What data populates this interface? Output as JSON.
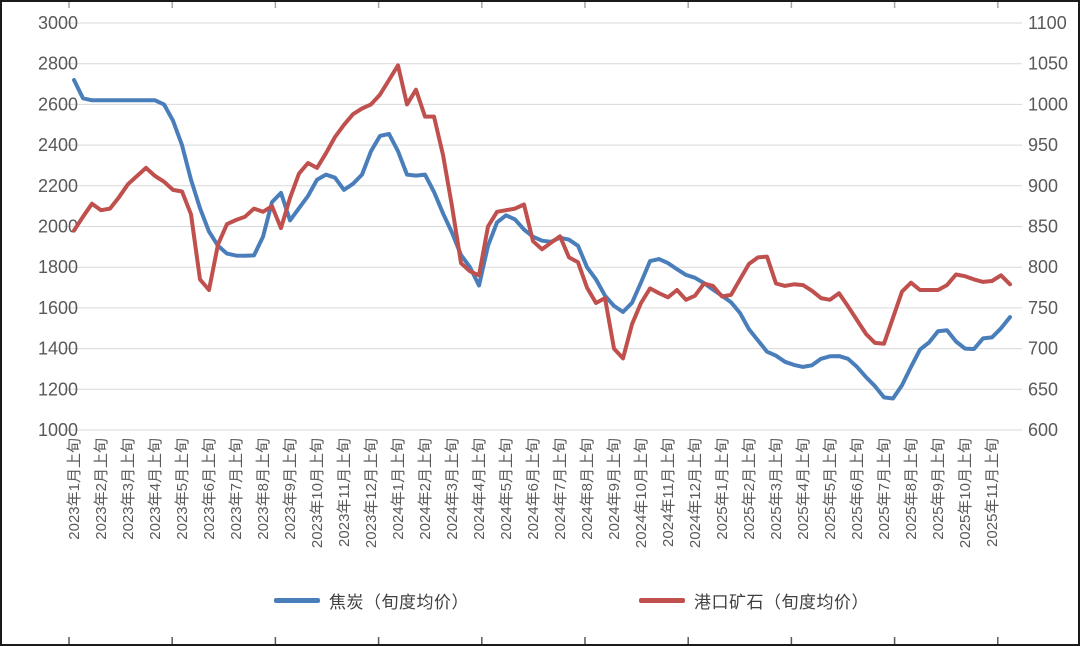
{
  "page": {
    "background": "#FFFFFF",
    "frame_color": "#1A1A1A",
    "gridline_color": "#D9D9D9",
    "axis_text_color": "#595959",
    "legend_text_color": "#404040"
  },
  "legend": {
    "coke_label": "焦炭（旬度均价）",
    "ore_label": "港口矿石（旬度均价）"
  },
  "chart_data": {
    "type": "line",
    "title": "",
    "grid": "horizontal",
    "legend_position": "bottom",
    "x_axis": {
      "note": "ten-day-period (旬) data, 3 points per monthly label",
      "points_per_month": 3,
      "monthly_labels": [
        "2023年1月上旬",
        "2023年2月上旬",
        "2023年3月上旬",
        "2023年4月上旬",
        "2023年5月上旬",
        "2023年6月上旬",
        "2023年7月上旬",
        "2023年8月上旬",
        "2023年9月上旬",
        "2023年10月上旬",
        "2023年11月上旬",
        "2023年12月上旬",
        "2024年1月上旬",
        "2024年2月上旬",
        "2024年3月上旬",
        "2024年4月上旬",
        "2024年5月上旬",
        "2024年6月上旬",
        "2024年7月上旬",
        "2024年8月上旬",
        "2024年9月上旬",
        "2024年10月上旬",
        "2024年11月上旬",
        "2024年12月上旬",
        "2025年1月上旬",
        "2025年2月上旬",
        "2025年3月上旬",
        "2025年4月上旬",
        "2025年5月上旬",
        "2025年6月上旬",
        "2025年7月上旬",
        "2025年8月上旬",
        "2025年9月上旬",
        "2025年10月上旬",
        "2025年11月上旬"
      ]
    },
    "y_axis_left": {
      "min": 1000,
      "max": 3000,
      "step": 200,
      "ticks": [
        "3000",
        "2800",
        "2600",
        "2400",
        "2200",
        "2000",
        "1800",
        "1600",
        "1400",
        "1200",
        "1000"
      ]
    },
    "y_axis_right": {
      "min": 600,
      "max": 1100,
      "step": 50,
      "ticks": [
        "1100",
        "1050",
        "1000",
        "950",
        "900",
        "850",
        "800",
        "750",
        "700",
        "650",
        "600"
      ]
    },
    "series": [
      {
        "name": "焦炭（旬度均价）",
        "color": "#4A7EBB",
        "axis": "left",
        "values": [
          2720,
          2630,
          2620,
          2620,
          2620,
          2620,
          2620,
          2620,
          2620,
          2620,
          2600,
          2520,
          2400,
          2230,
          2090,
          1975,
          1905,
          1867,
          1857,
          1856,
          1858,
          1950,
          2120,
          2165,
          2030,
          2090,
          2150,
          2230,
          2255,
          2240,
          2180,
          2210,
          2255,
          2370,
          2445,
          2455,
          2370,
          2255,
          2250,
          2255,
          2170,
          2065,
          1970,
          1860,
          1800,
          1710,
          1905,
          2020,
          2055,
          2035,
          1985,
          1950,
          1930,
          1925,
          1945,
          1935,
          1905,
          1800,
          1740,
          1660,
          1610,
          1580,
          1625,
          1725,
          1830,
          1840,
          1820,
          1790,
          1762,
          1748,
          1722,
          1690,
          1660,
          1628,
          1575,
          1495,
          1440,
          1385,
          1365,
          1335,
          1320,
          1310,
          1318,
          1350,
          1362,
          1363,
          1350,
          1310,
          1260,
          1215,
          1160,
          1155,
          1220,
          1310,
          1395,
          1430,
          1485,
          1490,
          1435,
          1400,
          1398,
          1450,
          1455,
          1500,
          1555
        ]
      },
      {
        "name": "港口矿石（旬度均价）",
        "color": "#C0504D",
        "axis": "right",
        "values": [
          845,
          862,
          878,
          870,
          872,
          886,
          902,
          912,
          922,
          912,
          905,
          895,
          893,
          865,
          785,
          772,
          828,
          853,
          858,
          862,
          872,
          868,
          875,
          848,
          885,
          915,
          928,
          922,
          940,
          960,
          975,
          988,
          995,
          1000,
          1012,
          1030,
          1048,
          1000,
          1018,
          985,
          985,
          938,
          875,
          805,
          795,
          790,
          850,
          868,
          870,
          872,
          877,
          832,
          822,
          830,
          838,
          812,
          806,
          775,
          756,
          762,
          700,
          688,
          730,
          756,
          774,
          768,
          763,
          772,
          760,
          765,
          780,
          777,
          764,
          766,
          785,
          804,
          812,
          813,
          780,
          777,
          779,
          778,
          771,
          762,
          760,
          768,
          752,
          735,
          718,
          707,
          706,
          738,
          770,
          781,
          772,
          772,
          772,
          778,
          791,
          789,
          785,
          782,
          783,
          790,
          779
        ]
      }
    ]
  }
}
